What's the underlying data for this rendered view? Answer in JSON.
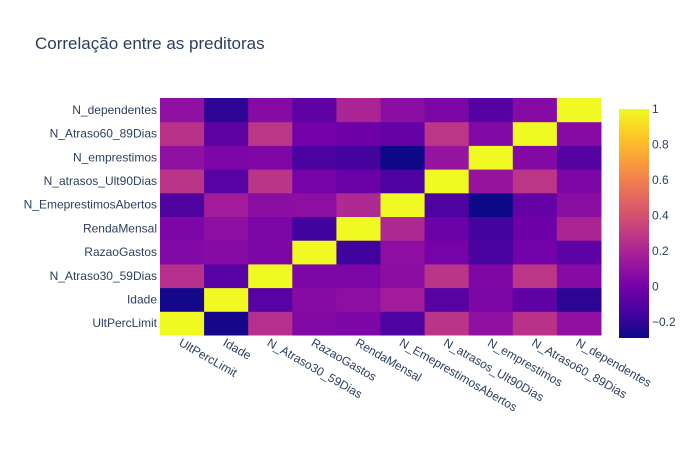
{
  "chart_data": {
    "type": "heatmap",
    "title": "Correlação entre as preditoras",
    "x_labels": [
      "UltPercLimit",
      "Idade",
      "N_Atraso30_59Dias",
      "RazaoGastos",
      "RendaMensal",
      "N_EmeprestimosAbertos",
      "N_atrasos_Ult90Dias",
      "N_emprestimos",
      "N_Atraso60_89Dias",
      "N_dependentes"
    ],
    "y_labels": [
      "UltPercLimit",
      "Idade",
      "N_Atraso30_59Dias",
      "RazaoGastos",
      "RendaMensal",
      "N_EmeprestimosAbertos",
      "N_atrasos_Ult90Dias",
      "N_emprestimos",
      "N_Atraso60_89Dias",
      "N_dependentes"
    ],
    "z": [
      [
        1.0,
        -0.27,
        0.25,
        0.05,
        0.03,
        -0.12,
        0.27,
        0.1,
        0.26,
        0.1
      ],
      [
        -0.27,
        1.0,
        -0.09,
        0.06,
        0.09,
        0.16,
        -0.09,
        0.03,
        -0.07,
        -0.21
      ],
      [
        0.25,
        -0.09,
        1.0,
        0.03,
        0.03,
        0.08,
        0.27,
        0.04,
        0.28,
        0.06
      ],
      [
        0.05,
        0.06,
        0.03,
        1.0,
        -0.16,
        0.09,
        0.01,
        -0.13,
        0.0,
        -0.07
      ],
      [
        0.03,
        0.09,
        0.03,
        -0.16,
        1.0,
        0.22,
        -0.03,
        -0.15,
        -0.02,
        0.2
      ],
      [
        -0.12,
        0.16,
        0.08,
        0.09,
        0.22,
        1.0,
        -0.12,
        -0.29,
        -0.05,
        0.08
      ],
      [
        0.27,
        -0.09,
        0.27,
        0.01,
        -0.03,
        -0.12,
        1.0,
        0.12,
        0.28,
        0.03
      ],
      [
        0.1,
        0.03,
        0.04,
        -0.13,
        -0.15,
        -0.29,
        0.12,
        1.0,
        0.05,
        -0.1
      ],
      [
        0.26,
        -0.07,
        0.28,
        0.0,
        -0.02,
        -0.05,
        0.28,
        0.05,
        1.0,
        0.06
      ],
      [
        0.1,
        -0.21,
        0.06,
        -0.07,
        0.2,
        0.08,
        0.03,
        -0.1,
        0.06,
        1.0
      ]
    ],
    "colorscale": "plasma",
    "colorbar": {
      "min": -0.29,
      "max": 1.0,
      "ticks": [
        "1",
        "0.8",
        "0.6",
        "0.4",
        "0.2",
        "0",
        "−0.2"
      ],
      "tick_values": [
        1,
        0.8,
        0.6,
        0.4,
        0.2,
        0,
        -0.2
      ]
    }
  },
  "colors": {
    "plasma": [
      "#0d0887",
      "#46039f",
      "#7201a8",
      "#9c179e",
      "#bd3786",
      "#d8576b",
      "#ed7953",
      "#fb9f3a",
      "#fdca26",
      "#f0f921"
    ],
    "text": "#2a3f5f"
  }
}
